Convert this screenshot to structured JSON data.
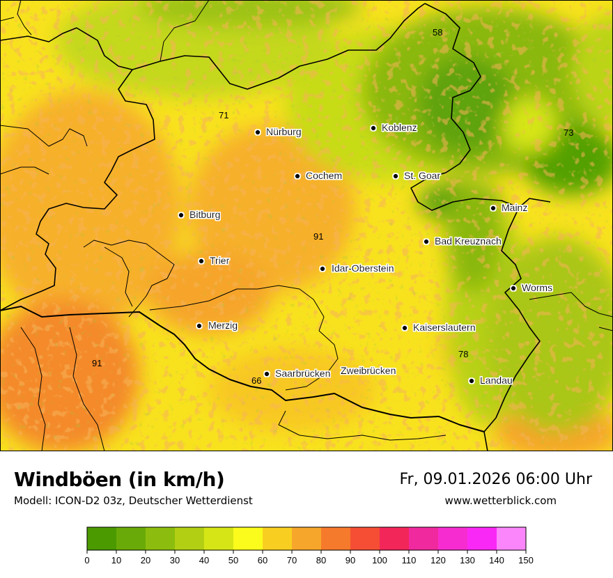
{
  "title": "Windböen (in km/h)",
  "subtitle": "Modell: ICON-D2 03z, Deutscher Wetterdienst",
  "datetime": "Fr, 09.01.2026 06:00 Uhr",
  "website": "www.wetterblick.com",
  "cities": [
    {
      "name": "Nürburg"
    },
    {
      "name": "Koblenz"
    },
    {
      "name": "Cochem"
    },
    {
      "name": "St. Goar"
    },
    {
      "name": "Mainz"
    },
    {
      "name": "Bitburg"
    },
    {
      "name": "Bad Kreuznach"
    },
    {
      "name": "Trier"
    },
    {
      "name": "Idar-Oberstein"
    },
    {
      "name": "Worms"
    },
    {
      "name": "Merzig"
    },
    {
      "name": "Kaiserslautern"
    },
    {
      "name": "Saarbrücken"
    },
    {
      "name": "Zweibrücken"
    },
    {
      "name": "Landau"
    }
  ],
  "values": [
    {
      "label": "58"
    },
    {
      "label": "71"
    },
    {
      "label": "73"
    },
    {
      "label": "91"
    },
    {
      "label": "91"
    },
    {
      "label": "78"
    },
    {
      "label": "66"
    }
  ],
  "legend": {
    "ticks": [
      "0",
      "10",
      "20",
      "30",
      "40",
      "50",
      "60",
      "70",
      "80",
      "90",
      "100",
      "110",
      "120",
      "130",
      "140",
      "150"
    ],
    "colors": [
      "#4a9a00",
      "#6aaa08",
      "#8cbd0e",
      "#b2cf14",
      "#d6e516",
      "#fbfb1c",
      "#f8cf20",
      "#f7a62c",
      "#f67a2c",
      "#f54e34",
      "#f3265a",
      "#f02a9e",
      "#f62cd0",
      "#fa28f6",
      "#fb86fb"
    ]
  }
}
